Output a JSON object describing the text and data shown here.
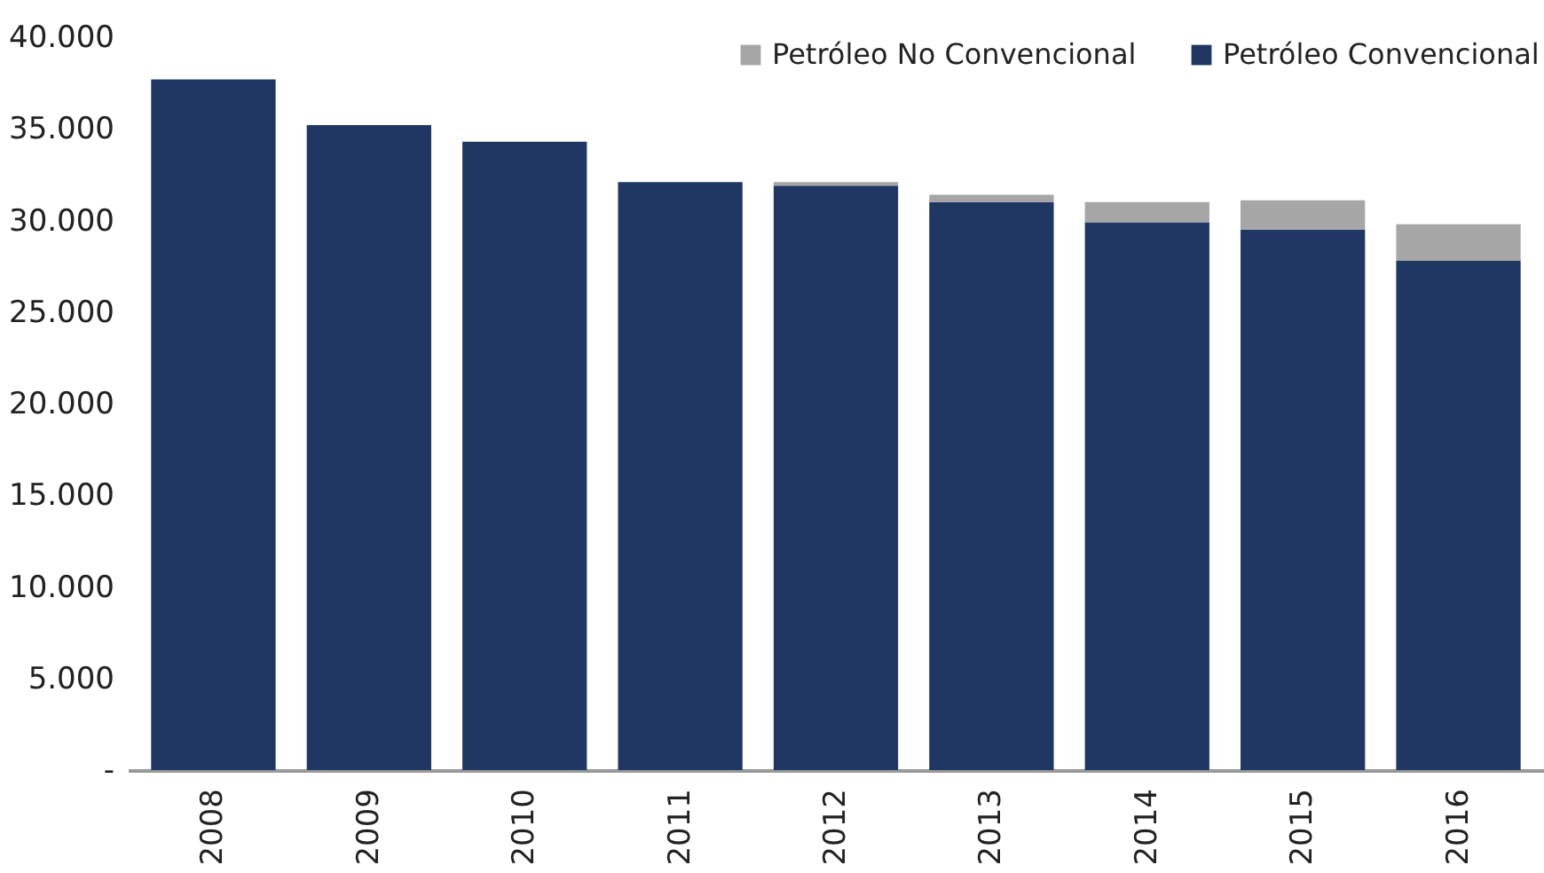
{
  "chart_data": {
    "type": "bar",
    "stacked": true,
    "categories": [
      "2008",
      "2009",
      "2010",
      "2011",
      "2012",
      "2013",
      "2014",
      "2015",
      "2016"
    ],
    "series": [
      {
        "name": "Petróleo Convencional",
        "color": "#213763",
        "values": [
          37700,
          35200,
          34300,
          32100,
          31900,
          31000,
          29900,
          29500,
          27800
        ]
      },
      {
        "name": "Petróleo No Convencional",
        "color": "#a6a6a6",
        "values": [
          0,
          0,
          0,
          0,
          200,
          400,
          1100,
          1600,
          2000
        ]
      }
    ],
    "ylim": [
      0,
      40000
    ],
    "yticks": [
      {
        "value": 0,
        "label": "-"
      },
      {
        "value": 5000,
        "label": "5.000"
      },
      {
        "value": 10000,
        "label": "10.000"
      },
      {
        "value": 15000,
        "label": "15.000"
      },
      {
        "value": 20000,
        "label": "20.000"
      },
      {
        "value": 25000,
        "label": "25.000"
      },
      {
        "value": 30000,
        "label": "30.000"
      },
      {
        "value": 35000,
        "label": "35.000"
      },
      {
        "value": 40000,
        "label": "40.000"
      }
    ],
    "legend": "top right",
    "grid": false
  }
}
